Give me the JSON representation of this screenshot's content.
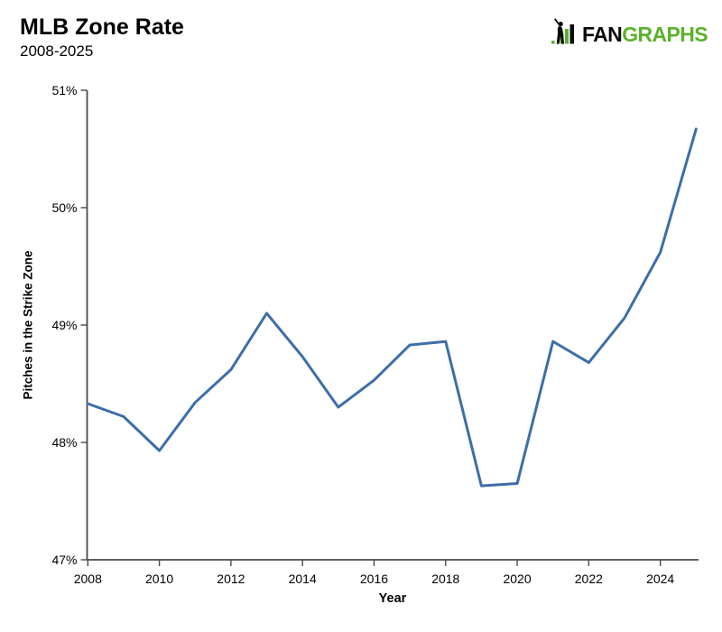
{
  "header": {
    "title": "MLB Zone Rate",
    "subtitle": "2008-2025",
    "logo": {
      "fan": "FAN",
      "graphs": "GRAPHS",
      "green": "#5bb22d",
      "black": "#0a0a0a"
    }
  },
  "chart_data": {
    "type": "line",
    "title": "MLB Zone Rate",
    "subtitle": "2008-2025",
    "xlabel": "Year",
    "ylabel": "Pitches in the Strike Zone",
    "x": [
      2008,
      2009,
      2010,
      2011,
      2012,
      2013,
      2014,
      2015,
      2016,
      2017,
      2018,
      2019,
      2020,
      2021,
      2022,
      2023,
      2024,
      2025
    ],
    "values": [
      48.33,
      48.22,
      47.93,
      48.34,
      48.62,
      49.1,
      48.73,
      48.3,
      48.53,
      48.83,
      48.86,
      47.63,
      47.65,
      48.86,
      48.68,
      49.06,
      49.62,
      50.67
    ],
    "xlim": [
      2008,
      2025
    ],
    "ylim": [
      47,
      51
    ],
    "x_ticks": [
      2008,
      2010,
      2012,
      2014,
      2016,
      2018,
      2020,
      2022,
      2024
    ],
    "x_tick_labels": [
      "2008",
      "2010",
      "2012",
      "2014",
      "2016",
      "2018",
      "2020",
      "2022",
      "2024"
    ],
    "y_ticks": [
      47,
      48,
      49,
      50,
      51
    ],
    "y_tick_labels": [
      "47%",
      "48%",
      "49%",
      "50%",
      "51%"
    ],
    "grid": false,
    "legend": "none",
    "line_color": "#3d6ea8",
    "axis_color": "#4a4a4a"
  }
}
